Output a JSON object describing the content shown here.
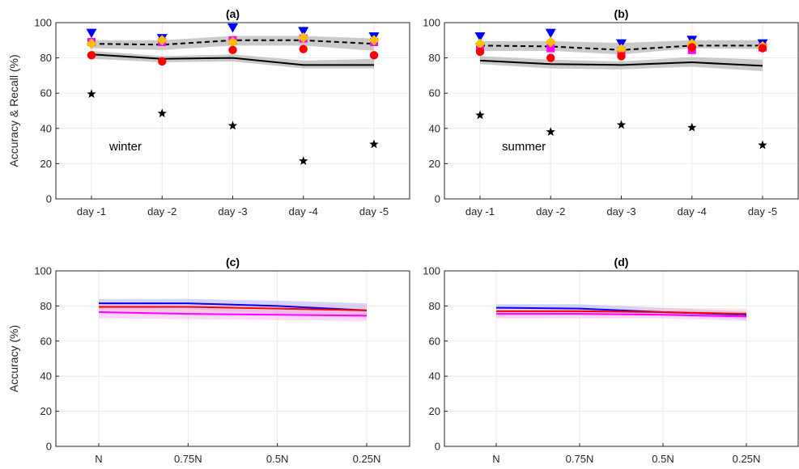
{
  "chart_data": [
    {
      "id": "a",
      "type": "line",
      "title": "(a)",
      "annotation": "winter",
      "ylabel": "Accuracy & Recall (%)",
      "categories": [
        "day -1",
        "day -2",
        "day -3",
        "day -4",
        "day -5"
      ],
      "ylim": [
        0,
        100
      ],
      "yticks": [
        0,
        20,
        40,
        60,
        80,
        100
      ],
      "grid": true,
      "bands": [
        {
          "lower": [
            79.5,
            77.5,
            78,
            74,
            74
          ],
          "upper": [
            84,
            81,
            82,
            78.5,
            79.5
          ],
          "color": "#b3b3b3"
        },
        {
          "lower": [
            85.5,
            84.5,
            87,
            87,
            84
          ],
          "upper": [
            90,
            90,
            92.5,
            92.5,
            91
          ],
          "color": "#b3b3b3"
        }
      ],
      "series": [
        {
          "values": [
            82,
            79.5,
            80,
            76,
            76
          ],
          "color": "#000000",
          "dash": "solid",
          "marker": "none"
        },
        {
          "values": [
            88,
            87.5,
            90,
            90,
            88
          ],
          "color": "#000000",
          "dash": "dashed",
          "marker": "none"
        },
        {
          "values": [
            94,
            91,
            97,
            95,
            92
          ],
          "color": "#0000ff",
          "marker": "triangle-down"
        },
        {
          "values": [
            89,
            89,
            90,
            91,
            89
          ],
          "color": "#ff00ff",
          "marker": "square"
        },
        {
          "values": [
            88,
            90,
            89,
            91.5,
            90
          ],
          "color": "#ffbf00",
          "marker": "diamond"
        },
        {
          "values": [
            81.5,
            78,
            84.5,
            85,
            81.5
          ],
          "color": "#ff0000",
          "marker": "circle"
        },
        {
          "values": [
            59.5,
            48.5,
            41.5,
            21.5,
            31
          ],
          "color": "#000000",
          "marker": "star"
        }
      ]
    },
    {
      "id": "b",
      "type": "line",
      "title": "(b)",
      "annotation": "summer",
      "ylabel": "",
      "categories": [
        "day -1",
        "day -2",
        "day -3",
        "day -4",
        "day -5"
      ],
      "ylim": [
        0,
        100
      ],
      "yticks": [
        0,
        20,
        40,
        60,
        80,
        100
      ],
      "grid": true,
      "bands": [
        {
          "lower": [
            76.5,
            74,
            73.5,
            75,
            72.5
          ],
          "upper": [
            81,
            79,
            78,
            80.5,
            79
          ],
          "color": "#b3b3b3"
        },
        {
          "lower": [
            84,
            84,
            82,
            85.5,
            85
          ],
          "upper": [
            89.5,
            89.5,
            88.5,
            90,
            90
          ]
        }
      ],
      "series": [
        {
          "values": [
            78.5,
            76.5,
            76,
            77.5,
            75.5
          ],
          "color": "#000000",
          "dash": "solid",
          "marker": "none"
        },
        {
          "values": [
            87,
            86.5,
            84.5,
            87,
            87
          ],
          "color": "#000000",
          "dash": "dashed",
          "marker": "none"
        },
        {
          "values": [
            92,
            94,
            88,
            90,
            88
          ],
          "color": "#0000ff",
          "marker": "triangle-down"
        },
        {
          "values": [
            85,
            85.5,
            84,
            84.5,
            86
          ],
          "color": "#ff00ff",
          "marker": "square"
        },
        {
          "values": [
            88,
            89,
            85,
            88,
            86.5
          ],
          "color": "#ffbf00",
          "marker": "diamond"
        },
        {
          "values": [
            83.5,
            80,
            81,
            86,
            85.5
          ],
          "color": "#ff0000",
          "marker": "circle"
        },
        {
          "values": [
            47.5,
            38,
            42,
            40.5,
            30.5
          ],
          "color": "#000000",
          "marker": "star"
        }
      ]
    },
    {
      "id": "c",
      "type": "line",
      "title": "(c)",
      "ylabel": "Accuracy (%)",
      "categories": [
        "N",
        "0.75N",
        "0.5N",
        "0.25N"
      ],
      "ylim": [
        0,
        100
      ],
      "yticks": [
        0,
        20,
        40,
        60,
        80,
        100
      ],
      "grid": true,
      "bands": [
        {
          "lower": [
            78,
            78,
            76,
            73.5
          ],
          "upper": [
            84,
            84,
            83,
            81.5
          ],
          "color": "#9ea0ff"
        },
        {
          "lower": [
            76.5,
            76.5,
            75,
            73
          ],
          "upper": [
            82.5,
            82,
            81,
            80
          ],
          "color": "#ffc0c0"
        },
        {
          "lower": [
            73,
            72.5,
            72,
            71.5
          ],
          "upper": [
            79.5,
            78.5,
            77.5,
            77
          ],
          "color": "#f6a6f6"
        }
      ],
      "series": [
        {
          "values": [
            81.5,
            81.5,
            80,
            77.5
          ],
          "color": "#0000ff",
          "marker": "none"
        },
        {
          "values": [
            79.5,
            79.5,
            78.5,
            77.5
          ],
          "color": "#ff0000",
          "marker": "none"
        },
        {
          "values": [
            76.5,
            75.5,
            75,
            74.5
          ],
          "color": "#ff00ff",
          "marker": "none"
        }
      ]
    },
    {
      "id": "d",
      "type": "line",
      "title": "(d)",
      "ylabel": "",
      "categories": [
        "N",
        "0.75N",
        "0.5N",
        "0.25N"
      ],
      "ylim": [
        0,
        100
      ],
      "yticks": [
        0,
        20,
        40,
        60,
        80,
        100
      ],
      "grid": true,
      "bands": [
        {
          "lower": [
            76.5,
            76,
            74.5,
            72.5
          ],
          "upper": [
            81,
            81,
            79,
            77
          ],
          "color": "#9ea0ff"
        },
        {
          "lower": [
            74,
            74.5,
            74.5,
            73.5
          ],
          "upper": [
            79,
            79,
            79,
            78.5
          ],
          "color": "#ffc8b8"
        },
        {
          "lower": [
            73,
            73,
            73,
            71.5
          ],
          "upper": [
            78,
            78,
            77.5,
            76.5
          ],
          "color": "#f6a6f6"
        }
      ],
      "series": [
        {
          "values": [
            79,
            78.5,
            76.5,
            75
          ],
          "color": "#0000ff",
          "marker": "none"
        },
        {
          "values": [
            77,
            77,
            76.5,
            75.5
          ],
          "color": "#ff0000",
          "marker": "none"
        },
        {
          "values": [
            75.5,
            75.5,
            75,
            74
          ],
          "color": "#ff00ff",
          "marker": "none"
        }
      ]
    }
  ]
}
